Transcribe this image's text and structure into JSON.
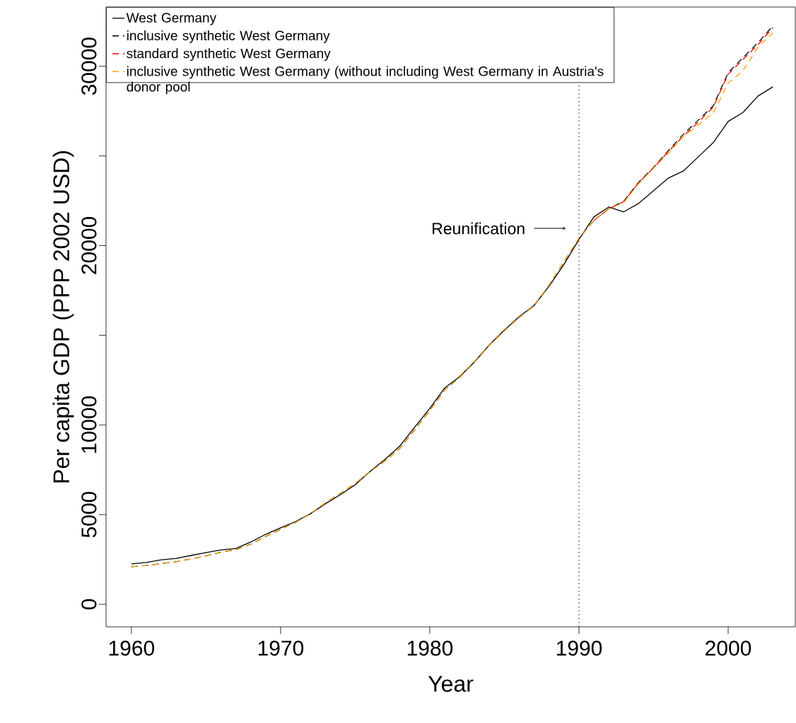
{
  "chart_data": {
    "type": "line",
    "xlabel": "Year",
    "ylabel": "Per capita GDP (PPP 2002 USD)",
    "x": [
      1960,
      1961,
      1962,
      1963,
      1964,
      1965,
      1966,
      1967,
      1968,
      1969,
      1970,
      1971,
      1972,
      1973,
      1974,
      1975,
      1976,
      1977,
      1978,
      1979,
      1980,
      1981,
      1982,
      1983,
      1984,
      1985,
      1986,
      1987,
      1988,
      1989,
      1990,
      1991,
      1992,
      1993,
      1994,
      1995,
      1996,
      1997,
      1998,
      1999,
      2000,
      2001,
      2002,
      2003
    ],
    "series": [
      {
        "name": "West Germany",
        "color": "#000000",
        "line_style": "solid",
        "values": [
          2250,
          2330,
          2480,
          2560,
          2720,
          2880,
          3030,
          3110,
          3470,
          3900,
          4260,
          4610,
          5050,
          5600,
          6110,
          6660,
          7410,
          8080,
          8830,
          9890,
          10920,
          12060,
          12690,
          13520,
          14470,
          15290,
          16040,
          16670,
          17740,
          18960,
          20340,
          21600,
          22150,
          21880,
          22350,
          23060,
          23770,
          24160,
          24950,
          25740,
          26920,
          27430,
          28340,
          28850
        ]
      },
      {
        "name": "inclusive synthetic West Germany",
        "color": "#000000",
        "line_style": "dashed",
        "values": [
          2090,
          2160,
          2270,
          2370,
          2530,
          2700,
          2900,
          3050,
          3350,
          3780,
          4180,
          4570,
          5050,
          5650,
          6180,
          6730,
          7400,
          8000,
          8700,
          9750,
          10800,
          11950,
          12650,
          13500,
          14450,
          15250,
          16000,
          16650,
          17800,
          19100,
          20400,
          21400,
          22050,
          22470,
          23530,
          24360,
          25300,
          26210,
          27000,
          27790,
          29640,
          30480,
          31310,
          32250
        ]
      },
      {
        "name": "standard synthetic West Germany",
        "color": "#ff0000",
        "line_style": "dashed",
        "values": [
          null,
          null,
          null,
          null,
          null,
          null,
          null,
          null,
          null,
          null,
          null,
          null,
          null,
          null,
          null,
          null,
          null,
          null,
          null,
          null,
          null,
          null,
          null,
          null,
          null,
          null,
          null,
          null,
          null,
          null,
          null,
          21400,
          22050,
          22450,
          23500,
          24330,
          25250,
          26100,
          26880,
          27720,
          29550,
          30380,
          31200,
          32150
        ]
      },
      {
        "name": "inclusive synthetic West Germany (without including West Germany in Austria's donor pool",
        "color": "#ffa500",
        "line_style": "dashed",
        "values": [
          2090,
          2160,
          2270,
          2370,
          2530,
          2700,
          2900,
          3050,
          3350,
          3780,
          4180,
          4570,
          5050,
          5650,
          6180,
          6730,
          7400,
          8000,
          8700,
          9750,
          10800,
          11950,
          12650,
          13500,
          14450,
          15250,
          16000,
          16650,
          17800,
          19100,
          20400,
          21400,
          22050,
          22400,
          23450,
          24320,
          25150,
          26090,
          26720,
          27390,
          29050,
          29760,
          31070,
          31860
        ]
      }
    ],
    "xlim": [
      1958.3,
      2004.5
    ],
    "ylim": [
      -1260,
      33300
    ],
    "xticks": [
      1960,
      1970,
      1980,
      1990,
      2000
    ],
    "yticks": [
      0,
      5000,
      10000,
      {
        "value": 15000,
        "label": null
      },
      20000,
      {
        "value": 25000,
        "label": null
      },
      30000
    ],
    "ref_lines": [
      {
        "axis": "x",
        "value": 1990,
        "line_style": "dotted",
        "color": "#000000"
      }
    ],
    "annotations": [
      "Reunification"
    ],
    "grid": false,
    "legend": "top left",
    "marker": "none"
  }
}
